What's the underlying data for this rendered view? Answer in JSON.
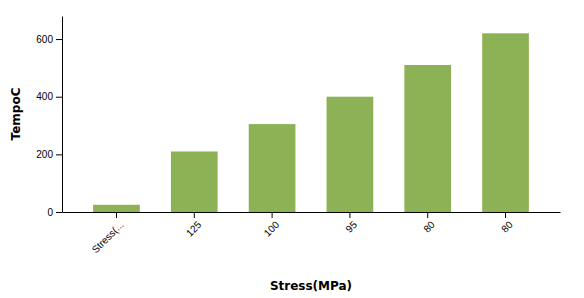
{
  "chart_data": {
    "type": "bar",
    "categories": [
      "Stress(...",
      "125",
      "100",
      "95",
      "80",
      "80"
    ],
    "values": [
      25,
      210,
      305,
      400,
      510,
      620
    ],
    "color": "#8DB255",
    "xlabel": "Stress(MPa)",
    "ylabel": "TempoC",
    "ylim": [
      0,
      680
    ],
    "yticks": [
      0,
      200,
      400,
      600
    ]
  }
}
